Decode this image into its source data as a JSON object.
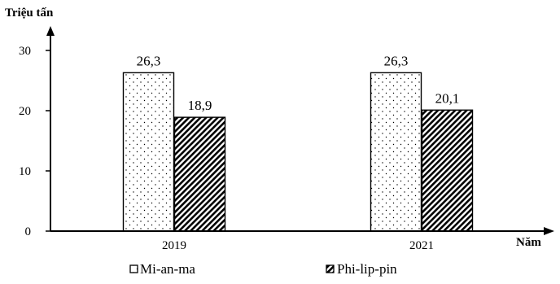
{
  "chart_data": {
    "type": "bar",
    "ylabel": "Triệu tấn",
    "xlabel": "Năm",
    "categories": [
      "2019",
      "2021"
    ],
    "ylim": [
      0,
      30
    ],
    "yticks": [
      0,
      10,
      20,
      30
    ],
    "grid": false,
    "legend_position": "bottom",
    "series": [
      {
        "name": "Mi-an-ma",
        "values": [
          26.3,
          26.3
        ],
        "labels": [
          "26,3",
          "26,3"
        ],
        "pattern": "dots"
      },
      {
        "name": "Phi-lip-pin",
        "values": [
          18.9,
          20.1
        ],
        "labels": [
          "18,9",
          "20,1"
        ],
        "pattern": "hatch"
      }
    ]
  }
}
